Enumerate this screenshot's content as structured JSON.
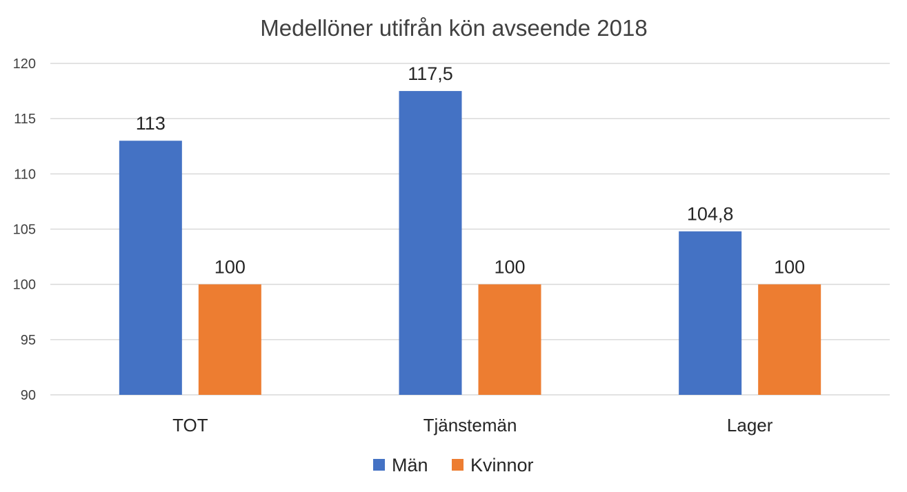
{
  "chart_data": {
    "type": "bar",
    "title": "Medellöner utifrån kön avseende 2018",
    "xlabel": "",
    "ylabel": "",
    "categories": [
      "TOT",
      "Tjänstemän",
      "Lager"
    ],
    "series": [
      {
        "name": "Män",
        "values": [
          113,
          117.5,
          104.8
        ],
        "labels": [
          "113",
          "117,5",
          "104,8"
        ],
        "color": "#4472C4"
      },
      {
        "name": "Kvinnor",
        "values": [
          100,
          100,
          100
        ],
        "labels": [
          "100",
          "100",
          "100"
        ],
        "color": "#ED7D31"
      }
    ],
    "ylim": [
      90,
      120
    ],
    "yticks": [
      "90",
      "95",
      "100",
      "105",
      "110",
      "115",
      "120"
    ],
    "grid": true,
    "legend_position": "bottom"
  }
}
